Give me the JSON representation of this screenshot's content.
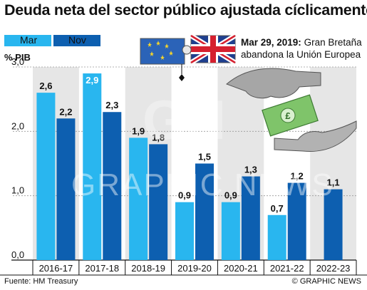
{
  "title": "Deuda neta del sector público ajustada cíclicamente",
  "legend": [
    {
      "label": "Mar",
      "color": "#29b6ef"
    },
    {
      "label": "Nov",
      "color": "#0d5fb0"
    }
  ],
  "annotation": {
    "date": "Mar 29, 2019:",
    "text_line1": "Gran Bretaña",
    "text_line2": "abandona la Unión Europea"
  },
  "source": "Fuente: HM Treasury",
  "credit": "© GRAPHIC NEWS",
  "watermark": "GRAPHIC NEWS",
  "chart_data": {
    "type": "bar",
    "title": "Deuda neta del sector público ajustada cíclicamente",
    "ylabel": "% PIB",
    "xlabel": "",
    "ylim": [
      0,
      3.0
    ],
    "yticks": [
      "0,0",
      "1,0",
      "2,0",
      "3,0"
    ],
    "grid": true,
    "legend_position": "top-left",
    "categories": [
      "2016-17",
      "2017-18",
      "2018-19",
      "2019-20",
      "2020-21",
      "2021-22",
      "2022-23"
    ],
    "series": [
      {
        "name": "Mar",
        "color": "#29b6ef",
        "values": [
          2.6,
          2.9,
          1.9,
          0.9,
          0.9,
          0.7,
          null
        ],
        "labels": [
          "2,6",
          "2,9",
          "1,9",
          "0,9",
          "0,9",
          "0,7",
          ""
        ]
      },
      {
        "name": "Nov",
        "color": "#0d5fb0",
        "values": [
          2.2,
          2.3,
          1.8,
          1.5,
          1.3,
          1.2,
          1.1
        ],
        "labels": [
          "2,2",
          "2,3",
          "1,8",
          "1,5",
          "1,3",
          "1,2",
          "1,1"
        ]
      }
    ]
  }
}
